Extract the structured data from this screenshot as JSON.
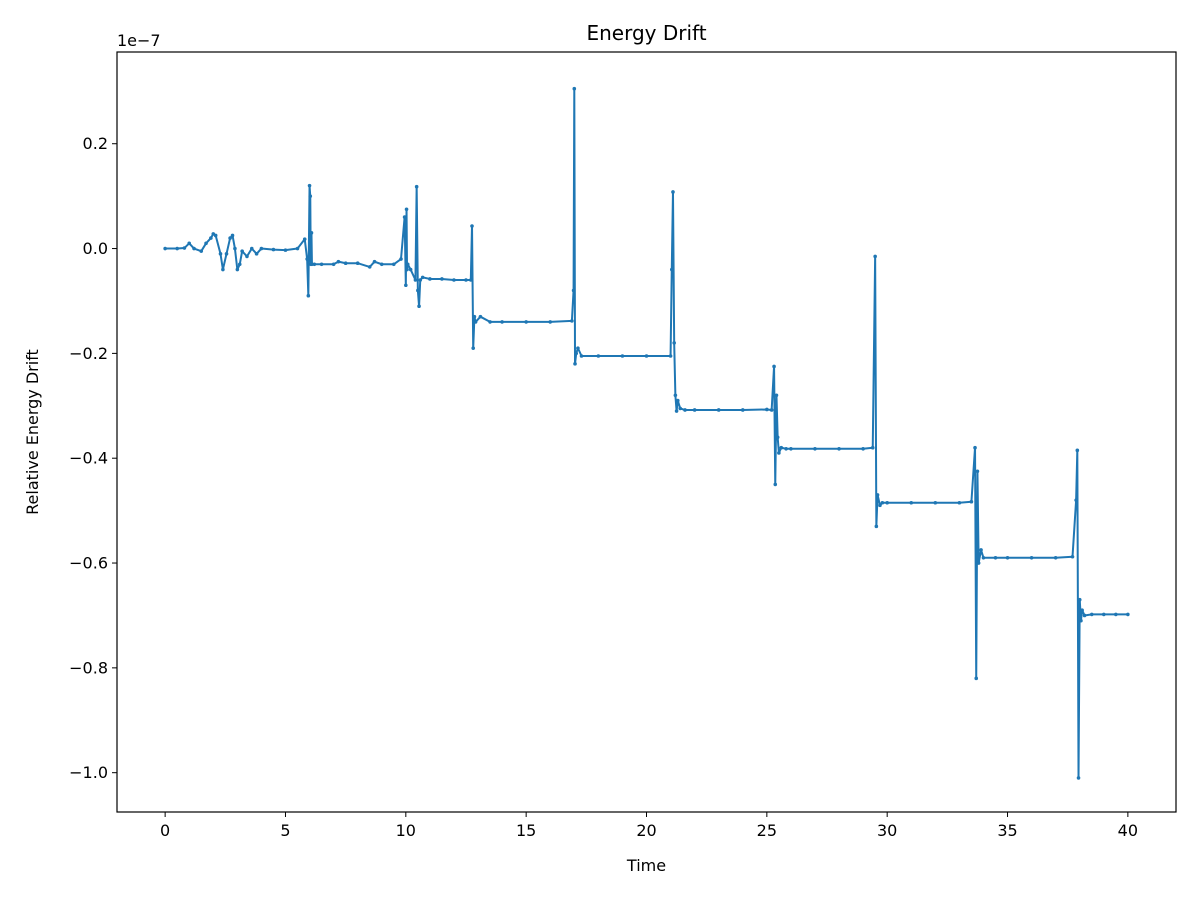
{
  "chart_data": {
    "type": "line",
    "title": "Energy Drift",
    "xlabel": "Time",
    "ylabel": "Relative Energy Drift",
    "y_offset_text": "1e−7",
    "y_scale_exponent": -7,
    "xlim": [
      -2,
      42
    ],
    "ylim": [
      -1.075e-07,
      3.75e-08
    ],
    "x_ticks": [
      0,
      5,
      10,
      15,
      20,
      25,
      30,
      35,
      40
    ],
    "x_tick_labels": [
      "0",
      "5",
      "10",
      "15",
      "20",
      "25",
      "30",
      "35",
      "40"
    ],
    "y_ticks": [
      2e-08,
      0.0,
      -2e-08,
      -4e-08,
      -6e-08,
      -8e-08,
      -1e-07
    ],
    "y_tick_labels": [
      "0.2",
      "0.0",
      "−0.2",
      "−0.4",
      "−0.6",
      "−0.8",
      "−1.0"
    ],
    "grid": false,
    "legend": "none",
    "series_color": "#1f77b4",
    "markers": "small dots",
    "series": [
      {
        "x": [
          0.0,
          0.5,
          0.8,
          1.0,
          1.2,
          1.5,
          1.7,
          1.9,
          2.0,
          2.1,
          2.3,
          2.4,
          2.55,
          2.7,
          2.8,
          2.9,
          3.0,
          3.1,
          3.2,
          3.4,
          3.6,
          3.8,
          4.0,
          4.5,
          5.0,
          5.5,
          5.8,
          5.9,
          5.95,
          6.0,
          6.03,
          6.05,
          6.08,
          6.1,
          6.2,
          6.5,
          7.0,
          7.2,
          7.5,
          8.0,
          8.5,
          8.7,
          9.0,
          9.5,
          9.8,
          9.95,
          10.0,
          10.03,
          10.05,
          10.08,
          10.2,
          10.4,
          10.45,
          10.5,
          10.55,
          10.6,
          10.7,
          11.0,
          11.5,
          12.0,
          12.5,
          12.7,
          12.75,
          12.8,
          12.85,
          12.9,
          13.1,
          13.5,
          14.0,
          15.0,
          16.0,
          16.9,
          16.97,
          17.0,
          17.03,
          17.08,
          17.15,
          17.3,
          18.0,
          19.0,
          20.0,
          21.0,
          21.05,
          21.1,
          21.15,
          21.2,
          21.25,
          21.3,
          21.4,
          21.6,
          22.0,
          23.0,
          24.0,
          25.0,
          25.2,
          25.3,
          25.35,
          25.4,
          25.45,
          25.5,
          25.6,
          25.8,
          26.0,
          27.0,
          28.0,
          29.0,
          29.4,
          29.5,
          29.55,
          29.6,
          29.7,
          29.8,
          30.0,
          31.0,
          32.0,
          33.0,
          33.5,
          33.65,
          33.7,
          33.75,
          33.8,
          33.9,
          34.0,
          34.5,
          35.0,
          36.0,
          37.0,
          37.7,
          37.85,
          37.9,
          37.95,
          38.0,
          38.05,
          38.1,
          38.2,
          38.5,
          39.0,
          39.5,
          40.0
        ],
        "y": [
          0.0,
          0.0,
          1e-10,
          1e-09,
          0.0,
          -5e-10,
          1e-09,
          2e-09,
          2.8e-09,
          2.5e-09,
          -1e-09,
          -4e-09,
          -1e-09,
          2e-09,
          2.5e-09,
          0.0,
          -4e-09,
          -3e-09,
          -5e-10,
          -1.5e-09,
          0.0,
          -1e-09,
          0.0,
          -2e-10,
          -3e-10,
          0.0,
          1.8e-09,
          -2e-09,
          -9e-09,
          1.2e-08,
          1e-08,
          -3e-09,
          3e-09,
          -3e-09,
          -3e-09,
          -3e-09,
          -3e-09,
          -2.5e-09,
          -2.8e-09,
          -2.8e-09,
          -3.5e-09,
          -2.5e-09,
          -3e-09,
          -3e-09,
          -2e-09,
          6e-09,
          -7e-09,
          7.5e-09,
          -4e-09,
          -3e-09,
          -4e-09,
          -6e-09,
          1.18e-08,
          -8e-09,
          -1.1e-08,
          -6e-09,
          -5.5e-09,
          -5.8e-09,
          -5.8e-09,
          -6e-09,
          -6e-09,
          -6e-09,
          4.3e-09,
          -1.9e-08,
          -1.3e-08,
          -1.4e-08,
          -1.3e-08,
          -1.4e-08,
          -1.4e-08,
          -1.4e-08,
          -1.4e-08,
          -1.38e-08,
          -8e-09,
          3.05e-08,
          -2.2e-08,
          -2e-08,
          -1.9e-08,
          -2.05e-08,
          -2.05e-08,
          -2.05e-08,
          -2.05e-08,
          -2.05e-08,
          -4e-09,
          1.08e-08,
          -1.8e-08,
          -2.8e-08,
          -3.1e-08,
          -2.9e-08,
          -3.05e-08,
          -3.08e-08,
          -3.08e-08,
          -3.08e-08,
          -3.08e-08,
          -3.07e-08,
          -3.08e-08,
          -2.25e-08,
          -4.5e-08,
          -2.8e-08,
          -3.6e-08,
          -3.9e-08,
          -3.8e-08,
          -3.82e-08,
          -3.82e-08,
          -3.82e-08,
          -3.82e-08,
          -3.82e-08,
          -3.8e-08,
          -1.5e-09,
          -5.3e-08,
          -4.7e-08,
          -4.9e-08,
          -4.85e-08,
          -4.85e-08,
          -4.85e-08,
          -4.85e-08,
          -4.85e-08,
          -4.83e-08,
          -3.8e-08,
          -8.2e-08,
          -4.25e-08,
          -6e-08,
          -5.75e-08,
          -5.9e-08,
          -5.9e-08,
          -5.9e-08,
          -5.9e-08,
          -5.9e-08,
          -5.88e-08,
          -4.8e-08,
          -3.85e-08,
          -1.01e-07,
          -6.7e-08,
          -7.1e-08,
          -6.9e-08,
          -7e-08,
          -6.98e-08,
          -6.98e-08,
          -6.98e-08,
          -6.98e-08
        ]
      }
    ]
  }
}
